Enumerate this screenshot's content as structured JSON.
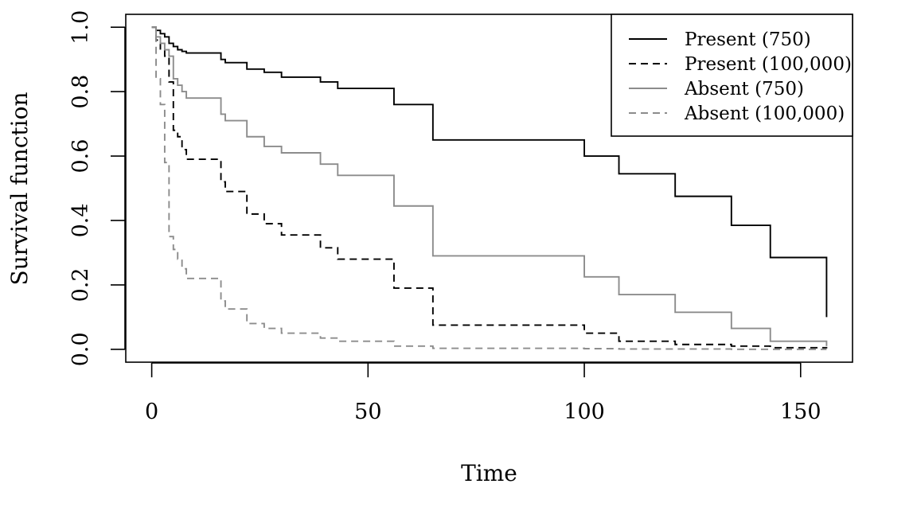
{
  "chart_data": {
    "type": "line",
    "step": true,
    "xlabel": "Time",
    "ylabel": "Survival function",
    "xlim": [
      -6,
      162
    ],
    "ylim": [
      -0.04,
      1.04
    ],
    "xticks": [
      "0",
      "50",
      "100",
      "150"
    ],
    "xtick_values": [
      0,
      50,
      100,
      150
    ],
    "yticks": [
      "0.0",
      "0.2",
      "0.4",
      "0.6",
      "0.8",
      "1.0"
    ],
    "ytick_values": [
      0,
      0.2,
      0.4,
      0.6,
      0.8,
      1.0
    ],
    "legend_position": "top-right",
    "series": [
      {
        "name": "Present (750)",
        "color": "#000000",
        "dash": "solid",
        "x": [
          0,
          1,
          2,
          3,
          4,
          5,
          6,
          7,
          8,
          16,
          17,
          22,
          26,
          30,
          39,
          43,
          56,
          65,
          100,
          108,
          121,
          134,
          143,
          156
        ],
        "y": [
          1.0,
          0.99,
          0.98,
          0.97,
          0.95,
          0.94,
          0.93,
          0.925,
          0.92,
          0.9,
          0.89,
          0.87,
          0.86,
          0.845,
          0.83,
          0.81,
          0.76,
          0.65,
          0.6,
          0.545,
          0.475,
          0.385,
          0.285,
          0.1
        ]
      },
      {
        "name": "Present (100,000)",
        "color": "#000000",
        "dash": "dashed",
        "x": [
          0,
          1,
          2,
          3,
          4,
          5,
          6,
          7,
          8,
          16,
          17,
          22,
          26,
          30,
          39,
          43,
          56,
          65,
          100,
          108,
          121,
          134,
          143,
          156
        ],
        "y": [
          1.0,
          0.96,
          0.93,
          0.91,
          0.83,
          0.68,
          0.66,
          0.62,
          0.59,
          0.52,
          0.49,
          0.42,
          0.39,
          0.355,
          0.315,
          0.28,
          0.19,
          0.075,
          0.05,
          0.025,
          0.015,
          0.01,
          0.005,
          0.003
        ]
      },
      {
        "name": "Absent (750)",
        "color": "#8c8c8c",
        "dash": "solid",
        "x": [
          0,
          1,
          2,
          3,
          4,
          5,
          6,
          7,
          8,
          16,
          17,
          22,
          26,
          30,
          39,
          43,
          56,
          65,
          100,
          108,
          121,
          134,
          143,
          156
        ],
        "y": [
          1.0,
          0.97,
          0.95,
          0.93,
          0.91,
          0.84,
          0.82,
          0.8,
          0.78,
          0.73,
          0.71,
          0.66,
          0.63,
          0.61,
          0.575,
          0.54,
          0.445,
          0.29,
          0.225,
          0.17,
          0.115,
          0.065,
          0.025,
          0.01
        ]
      },
      {
        "name": "Absent (100,000)",
        "color": "#8c8c8c",
        "dash": "dashed",
        "x": [
          0,
          1,
          2,
          3,
          4,
          5,
          6,
          7,
          8,
          16,
          17,
          22,
          26,
          30,
          39,
          43,
          56,
          65,
          100,
          108,
          121,
          134,
          143,
          156
        ],
        "y": [
          1.0,
          0.84,
          0.76,
          0.58,
          0.35,
          0.31,
          0.28,
          0.25,
          0.22,
          0.15,
          0.125,
          0.08,
          0.065,
          0.05,
          0.035,
          0.025,
          0.01,
          0.003,
          0.002,
          0.001,
          0.001,
          0.0,
          0.0,
          0.0
        ]
      }
    ]
  }
}
